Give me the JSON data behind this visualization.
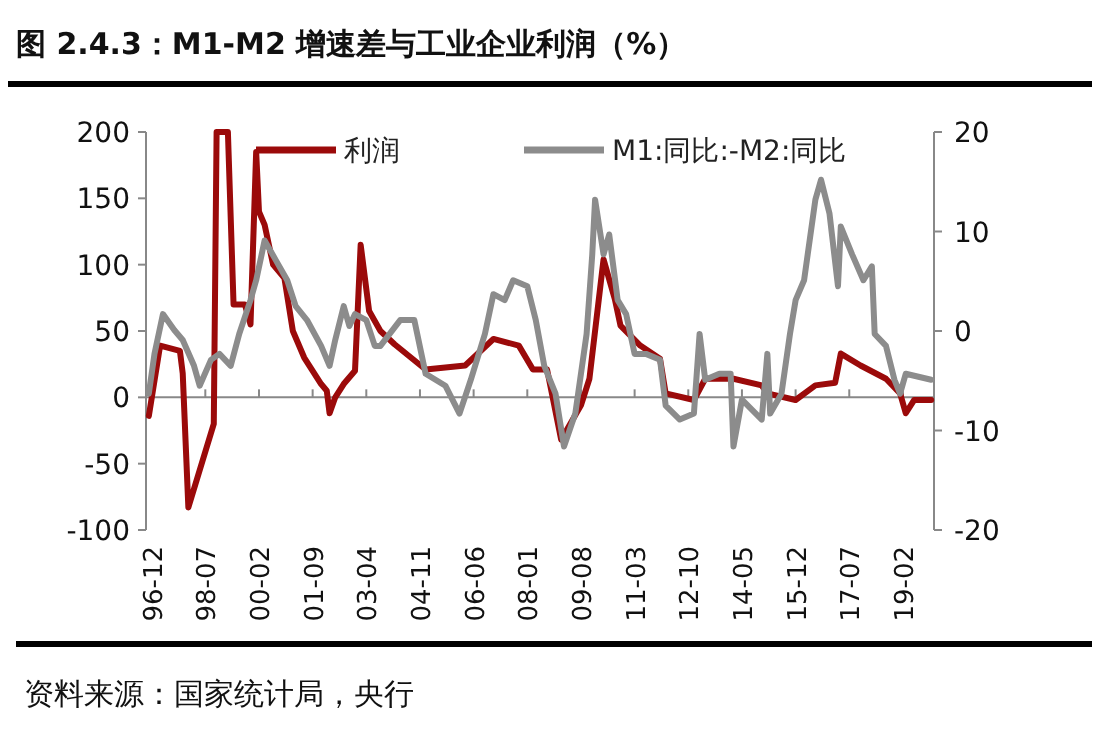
{
  "chart_data": {
    "type": "line",
    "title": "图 2.4.3：M1-M2 增速差与工业企业利润（%）",
    "annotations": [
      "资料来源：国家统计局，央行"
    ],
    "legend": "top",
    "xlim": [
      "1996-10",
      "2020-01"
    ],
    "xticks": [
      {
        "value": "1996-12",
        "label": "96-12"
      },
      {
        "value": "1998-07",
        "label": "98-07"
      },
      {
        "value": "2000-02",
        "label": "00-02"
      },
      {
        "value": "2001-09",
        "label": "01-09"
      },
      {
        "value": "2003-04",
        "label": "03-04"
      },
      {
        "value": "2004-11",
        "label": "04-11"
      },
      {
        "value": "2006-06",
        "label": "06-06"
      },
      {
        "value": "2008-01",
        "label": "08-01"
      },
      {
        "value": "2009-08",
        "label": "09-08"
      },
      {
        "value": "2011-03",
        "label": "11-03"
      },
      {
        "value": "2012-10",
        "label": "12-10"
      },
      {
        "value": "2014-05",
        "label": "14-05"
      },
      {
        "value": "2015-12",
        "label": "15-12"
      },
      {
        "value": "2017-07",
        "label": "17-07"
      },
      {
        "value": "2019-02",
        "label": "19-02"
      }
    ],
    "ylim": [
      -100,
      200
    ],
    "yticks": [
      -100,
      -50,
      0,
      50,
      100,
      150,
      200
    ],
    "y2lim": [
      -20,
      20
    ],
    "y2ticks": [
      -20,
      -10,
      0,
      10,
      20
    ],
    "series": [
      {
        "name": "利润",
        "color": "#9b0a0a",
        "x": [
          "1996-11",
          "1997-03",
          "1997-10",
          "1997-11",
          "1998-01",
          "1998-10",
          "1998-11",
          "1999-03",
          "1999-05",
          "1999-09",
          "1999-11",
          "2000-01",
          "2000-02",
          "2000-04",
          "2000-07",
          "2000-11",
          "2001-02",
          "2001-06",
          "2001-12",
          "2002-02",
          "2002-03",
          "2002-05",
          "2002-08",
          "2002-12",
          "2003-02",
          "2003-05",
          "2003-09",
          "2004-02",
          "2005-01",
          "2006-03",
          "2007-01",
          "2007-10",
          "2008-03",
          "2008-08",
          "2009-01",
          "2009-08",
          "2009-11",
          "2010-04",
          "2010-08",
          "2010-10",
          "2011-05",
          "2011-12",
          "2012-02",
          "2012-12",
          "2013-04",
          "2014-02",
          "2014-12",
          "2015-02",
          "2015-12",
          "2016-07",
          "2017-02",
          "2017-04",
          "2017-11",
          "2018-08",
          "2019-01",
          "2019-03",
          "2019-06",
          "2019-12"
        ],
        "values": [
          -14,
          39,
          35,
          18,
          -83,
          -20,
          200,
          200,
          70,
          70,
          55,
          185,
          140,
          130,
          100,
          90,
          50,
          30,
          10,
          5,
          -12,
          0,
          10,
          20,
          115,
          65,
          50,
          40,
          21,
          24,
          44,
          39,
          21,
          21,
          -32,
          -6,
          14,
          104,
          74,
          54,
          39,
          29,
          3,
          -2,
          14,
          14,
          9,
          3,
          -2,
          9,
          11,
          33,
          24,
          14,
          3,
          -12,
          -2,
          -2
        ]
      },
      {
        "name": "M1:同比:-M2:同比",
        "color": "#8c8c8c",
        "axis": "y2",
        "x": [
          "1996-11",
          "1997-01",
          "1997-04",
          "1997-08",
          "1997-11",
          "1998-03",
          "1998-05",
          "1998-09",
          "1998-12",
          "1999-04",
          "1999-07",
          "1999-11",
          "2000-01",
          "2000-04",
          "2000-08",
          "2000-12",
          "2001-03",
          "2001-07",
          "2001-12",
          "2002-03",
          "2002-05",
          "2002-08",
          "2002-10",
          "2002-12",
          "2003-04",
          "2003-07",
          "2003-09",
          "2004-04",
          "2004-09",
          "2005-01",
          "2005-08",
          "2006-01",
          "2006-05",
          "2006-10",
          "2007-01",
          "2007-05",
          "2007-08",
          "2008-01",
          "2008-04",
          "2008-07",
          "2008-11",
          "2009-02",
          "2009-06",
          "2009-10",
          "2009-12",
          "2010-01",
          "2010-04",
          "2010-06",
          "2010-09",
          "2010-12",
          "2011-03",
          "2011-07",
          "2011-12",
          "2012-02",
          "2012-07",
          "2012-12",
          "2013-02",
          "2013-04",
          "2013-09",
          "2014-01",
          "2014-02",
          "2014-05",
          "2014-12",
          "2015-02",
          "2015-03",
          "2015-07",
          "2015-10",
          "2015-12",
          "2016-03",
          "2016-07",
          "2016-09",
          "2016-12",
          "2017-03",
          "2017-04",
          "2017-08",
          "2017-12",
          "2018-03",
          "2018-04",
          "2018-08",
          "2018-11",
          "2019-01",
          "2019-03",
          "2019-12"
        ],
        "values": [
          -6.3,
          -2.3,
          1.7,
          0.1,
          -0.9,
          -3.5,
          -5.5,
          -2.9,
          -2.3,
          -3.5,
          -0.3,
          3.1,
          5.1,
          9.1,
          7.1,
          5.1,
          2.5,
          1.1,
          -1.5,
          -3.5,
          -0.9,
          2.5,
          0.5,
          1.7,
          1.1,
          -1.5,
          -1.5,
          1.1,
          1.1,
          -4.3,
          -5.5,
          -8.3,
          -4.9,
          -0.3,
          3.7,
          3.1,
          5.1,
          4.5,
          1.1,
          -3.5,
          -6.3,
          -11.6,
          -8.3,
          -0.3,
          7.7,
          13.2,
          7.7,
          9.7,
          3.1,
          1.7,
          -2.3,
          -2.3,
          -2.9,
          -7.5,
          -8.9,
          -8.3,
          -0.3,
          -4.9,
          -4.3,
          -4.3,
          -11.6,
          -6.9,
          -8.9,
          -2.3,
          -8.3,
          -6.3,
          -0.3,
          3.1,
          5.1,
          13.2,
          15.2,
          11.8,
          4.5,
          10.5,
          7.7,
          5.1,
          6.5,
          -0.3,
          -1.5,
          -4.9,
          -6.3,
          -4.3,
          -4.9
        ]
      }
    ]
  }
}
